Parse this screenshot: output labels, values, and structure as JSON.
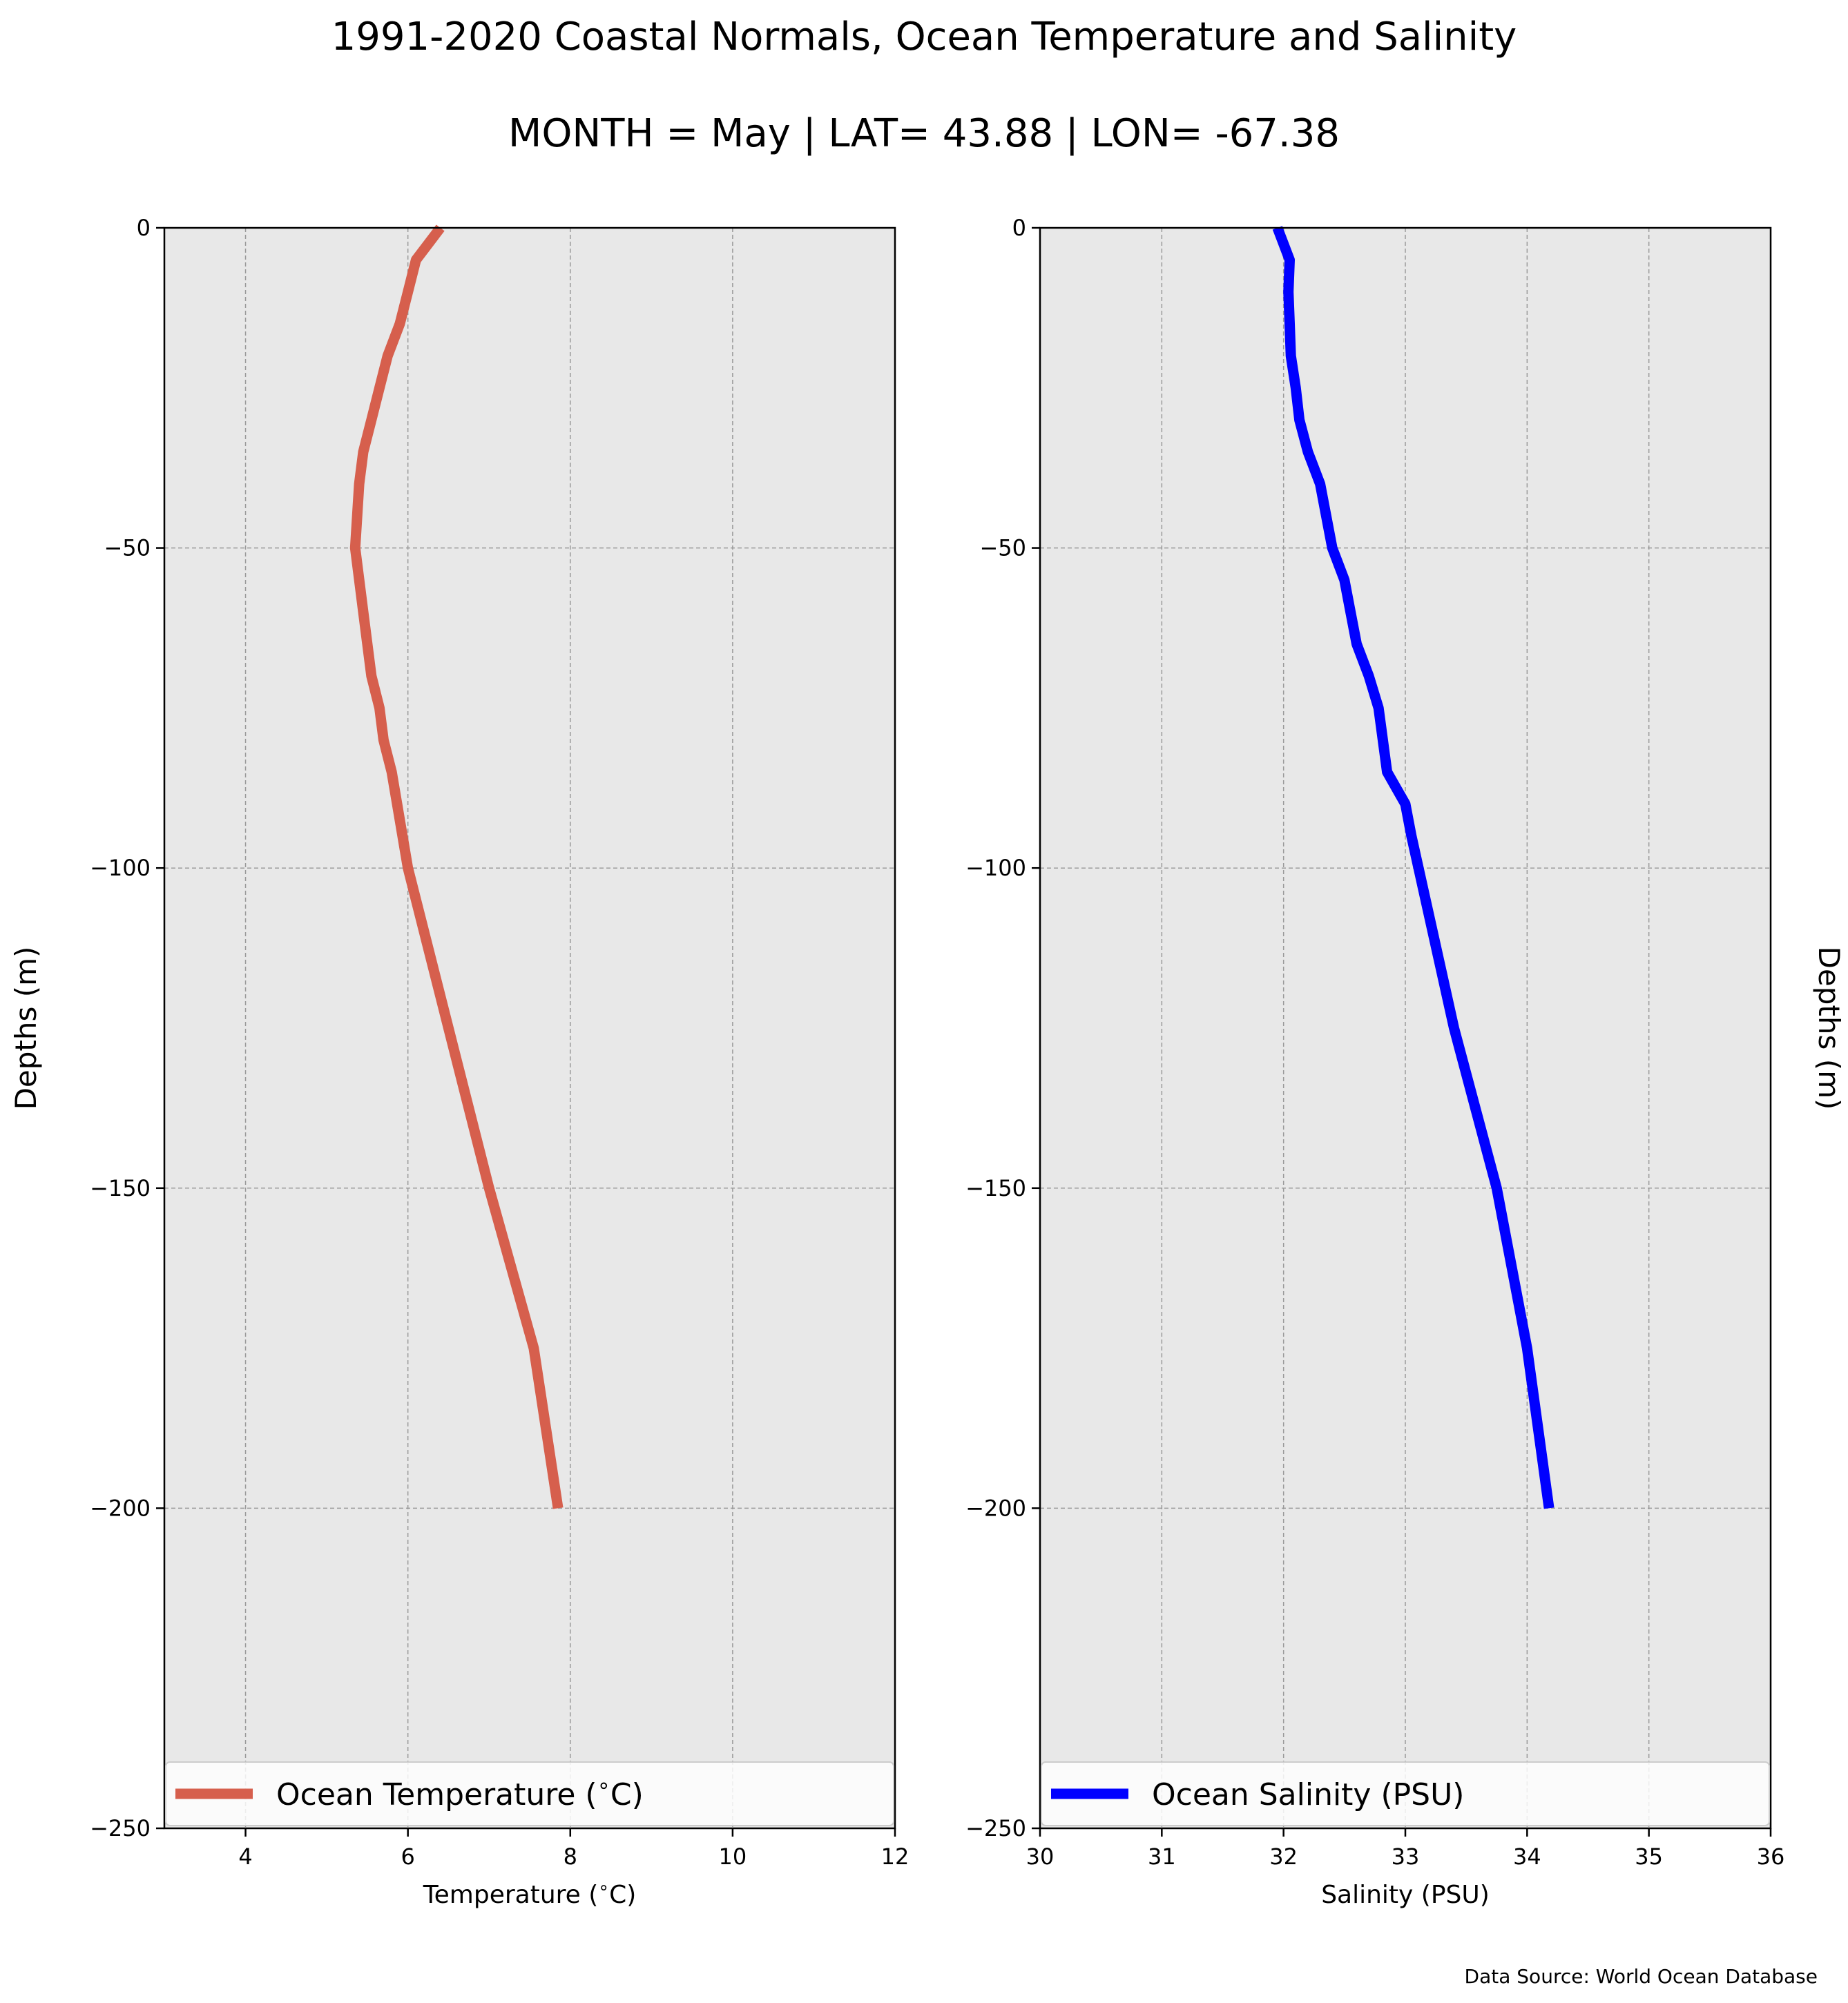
{
  "figure": {
    "title": "1991-2020 Coastal Normals, Ocean Temperature and Salinity",
    "subtitle": "MONTH = May | LAT= 43.88 | LON= -67.38",
    "source": "Data Source: World Ocean Database"
  },
  "colors": {
    "plot_background": "#e8e8e8",
    "grid": "#9a9a9a",
    "temperature_line": "#d65f4d",
    "salinity_line": "#0000ff"
  },
  "chart_data": [
    {
      "type": "line",
      "xlabel": "Temperature ($^\\circ$C)",
      "ylabel": "Depths (m)",
      "xlim": [
        3,
        12
      ],
      "ylim": [
        -250,
        0
      ],
      "xticks": [
        4,
        6,
        8,
        10,
        12
      ],
      "xtick_labels": [
        "4",
        "6",
        "8",
        "10",
        "12"
      ],
      "yticks": [
        0,
        -50,
        -100,
        -150,
        -200,
        -250
      ],
      "ytick_labels": [
        "0",
        "−50",
        "−100",
        "−150",
        "−200",
        "−250"
      ],
      "grid": true,
      "legend_position": "bottom",
      "series": [
        {
          "name": "Ocean Temperature ($^\\circ$C)",
          "x": [
            6.4,
            6.1,
            6.0,
            5.9,
            5.75,
            5.65,
            5.55,
            5.45,
            5.4,
            5.35,
            5.45,
            5.5,
            5.55,
            5.65,
            5.7,
            5.8,
            6.0,
            6.5,
            7.0,
            7.55,
            7.85
          ],
          "y": [
            0,
            -5,
            -10,
            -15,
            -20,
            -25,
            -30,
            -35,
            -40,
            -50,
            -60,
            -65,
            -70,
            -75,
            -80,
            -85,
            -100,
            -125,
            -150,
            -175,
            -200
          ]
        }
      ]
    },
    {
      "type": "line",
      "xlabel": "Salinity (PSU)",
      "ylabel": "Depths (m)",
      "xlim": [
        30,
        36
      ],
      "ylim": [
        -250,
        0
      ],
      "xticks": [
        30,
        31,
        32,
        33,
        34,
        35,
        36
      ],
      "xtick_labels": [
        "30",
        "31",
        "32",
        "33",
        "34",
        "35",
        "36"
      ],
      "yticks": [
        0,
        -50,
        -100,
        -150,
        -200,
        -250
      ],
      "ytick_labels": [
        "0",
        "−50",
        "−100",
        "−150",
        "−200",
        "−250"
      ],
      "grid": true,
      "legend_position": "bottom",
      "series": [
        {
          "name": "Ocean Salinity (PSU)",
          "x": [
            31.95,
            32.05,
            32.04,
            32.05,
            32.06,
            32.1,
            32.13,
            32.2,
            32.3,
            32.4,
            32.5,
            32.55,
            32.6,
            32.7,
            32.78,
            32.85,
            33.0,
            33.05,
            33.4,
            33.75,
            34.0,
            34.18
          ],
          "y": [
            0,
            -5,
            -10,
            -15,
            -20,
            -25,
            -30,
            -35,
            -40,
            -50,
            -55,
            -60,
            -65,
            -70,
            -75,
            -85,
            -90,
            -95,
            -125,
            -150,
            -175,
            -200
          ]
        }
      ]
    }
  ]
}
